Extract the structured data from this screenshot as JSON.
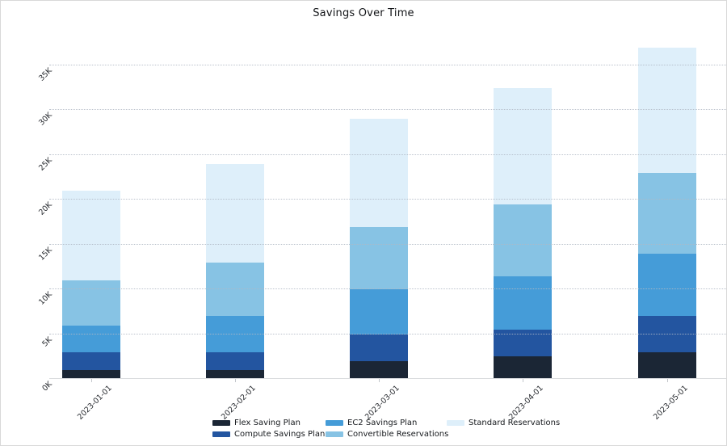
{
  "chart_data": {
    "type": "bar",
    "stacked": true,
    "title": "Savings Over Time",
    "xlabel": "",
    "ylabel": "",
    "categories": [
      "2023-01-01",
      "2023-02-01",
      "2023-03-01",
      "2023-04-01",
      "2023-05-01"
    ],
    "series": [
      {
        "name": "Flex Saving Plan",
        "color": "#1b2635",
        "values": [
          1000,
          1000,
          2000,
          2500,
          3000
        ]
      },
      {
        "name": "Compute Savings Plan",
        "color": "#2355a0",
        "values": [
          2000,
          2000,
          3000,
          3000,
          4000
        ]
      },
      {
        "name": "EC2 Savings Plan",
        "color": "#459cd8",
        "values": [
          3000,
          4000,
          5000,
          6000,
          7000
        ]
      },
      {
        "name": "Convertible Reservations",
        "color": "#87c3e4",
        "values": [
          5000,
          6000,
          7000,
          8000,
          9000
        ]
      },
      {
        "name": "Standard Reservations",
        "color": "#deeffa",
        "values": [
          10000,
          11000,
          12000,
          13000,
          14000
        ]
      }
    ],
    "totals": [
      21000,
      24000,
      29000,
      32500,
      37000
    ],
    "y_tick_labels": [
      "0K",
      "5K",
      "10K",
      "15K",
      "20K",
      "25K",
      "30K",
      "35K"
    ],
    "y_tick_values": [
      0,
      5000,
      10000,
      15000,
      20000,
      25000,
      30000,
      35000
    ],
    "ylim": [
      0,
      38150
    ],
    "grid": "horizontal-dotted",
    "legend_position": "bottom-center",
    "legend_columns": [
      [
        "Flex Saving Plan",
        "Compute Savings Plan"
      ],
      [
        "EC2 Savings Plan",
        "Convertible Reservations"
      ],
      [
        "Standard Reservations"
      ]
    ]
  }
}
